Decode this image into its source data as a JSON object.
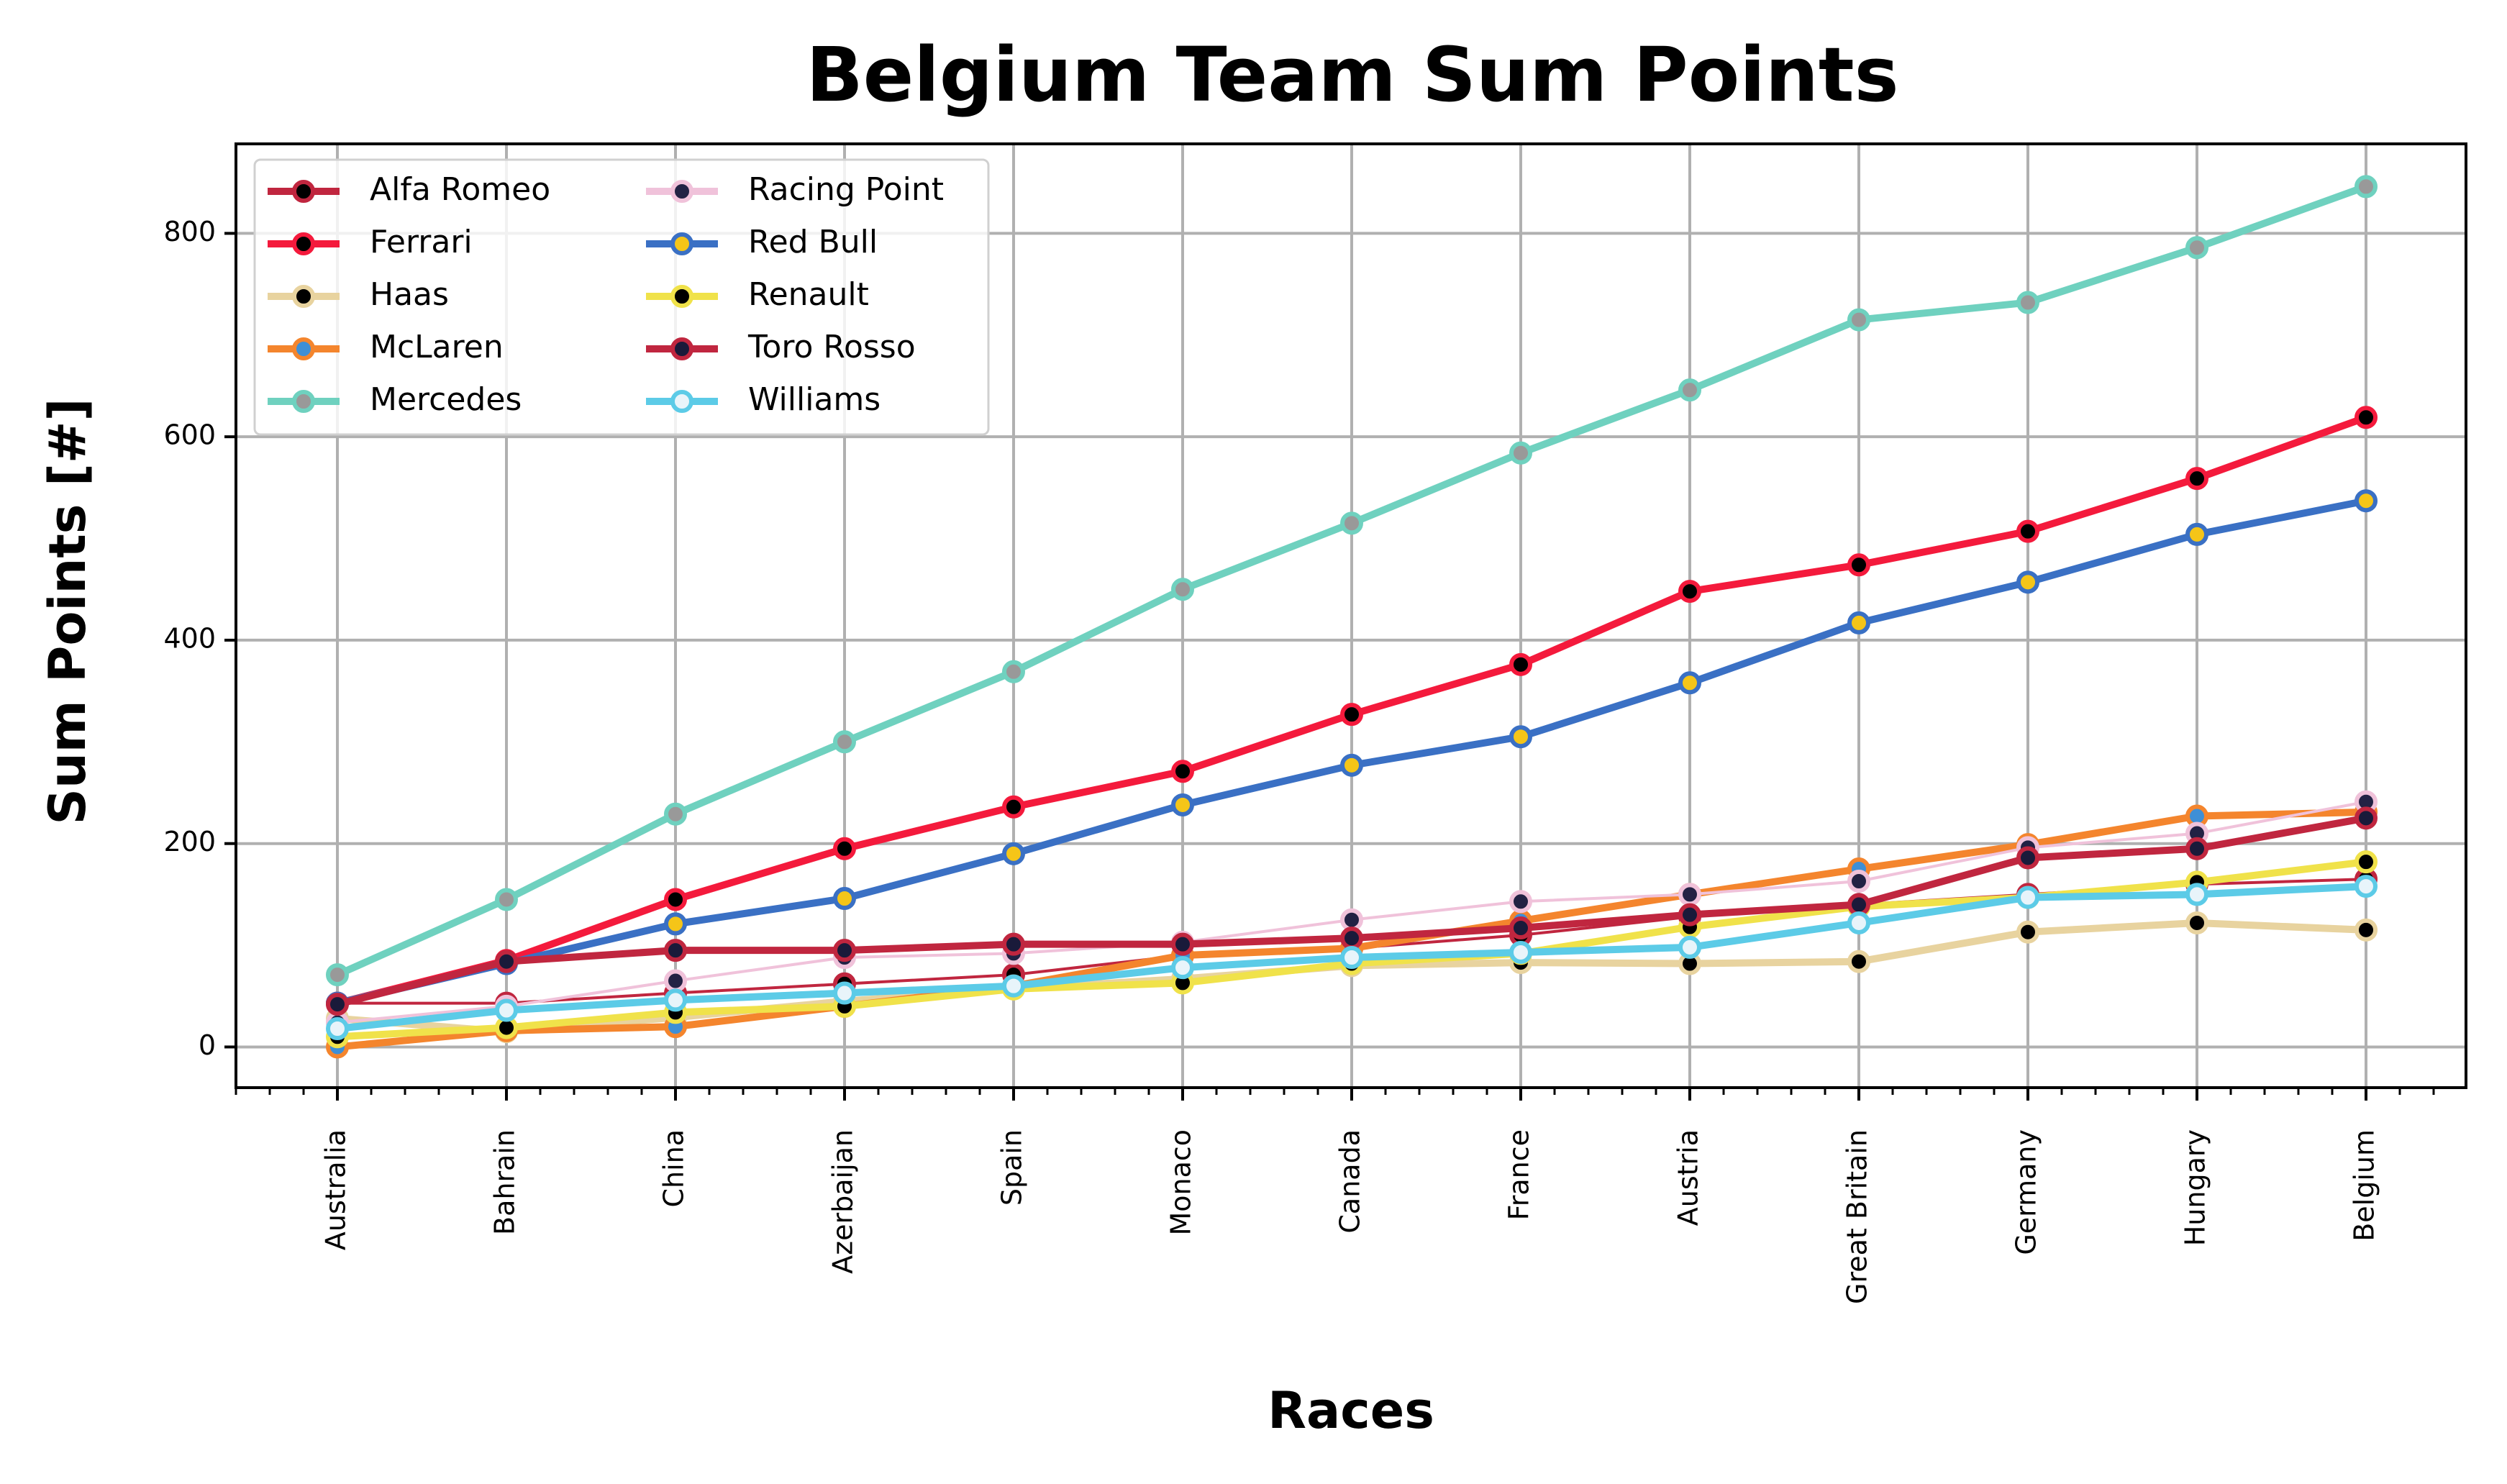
{
  "chart_data": {
    "type": "line",
    "title": "Belgium Team Sum Points",
    "xlabel": "Races",
    "ylabel": "Sum Points [#]",
    "categories": [
      "Australia",
      "Bahrain",
      "China",
      "Azerbaijan",
      "Spain",
      "Monaco",
      "Canada",
      "France",
      "Austria",
      "Great Britain",
      "Germany",
      "Hungary",
      "Belgium"
    ],
    "ylim": [
      -40,
      888
    ],
    "yticks": [
      0,
      200,
      400,
      600,
      800
    ],
    "grid": true,
    "legend_position": "top-left",
    "series": [
      {
        "name": "Alfa Romeo",
        "color": "#c0263f",
        "marker_color": "#000000",
        "values": [
          43,
          43,
          53,
          62,
          71,
          90,
          97,
          110,
          128,
          140,
          150,
          160,
          165
        ]
      },
      {
        "name": "Ferrari",
        "color": "#f41a3c",
        "marker_color": "#000000",
        "values": [
          43,
          85,
          145,
          195,
          236,
          271,
          327,
          376,
          448,
          474,
          507,
          559,
          619
        ]
      },
      {
        "name": "Haas",
        "color": "#e8d39f",
        "marker_color": "#000000",
        "values": [
          28,
          15,
          29,
          45,
          57,
          67,
          80,
          83,
          82,
          84,
          113,
          122,
          115
        ]
      },
      {
        "name": "McLaren",
        "color": "#f4852d",
        "marker_color": "#3e8fd6",
        "values": [
          0,
          16,
          20,
          40,
          60,
          90,
          97,
          124,
          150,
          175,
          199,
          227,
          231
        ]
      },
      {
        "name": "Mercedes",
        "color": "#6fd1bf",
        "marker_color": "#999999",
        "values": [
          71,
          145,
          229,
          300,
          369,
          450,
          515,
          584,
          646,
          715,
          732,
          786,
          846
        ]
      },
      {
        "name": "Racing Point",
        "color": "#f0c2da",
        "marker_color": "#222244",
        "values": [
          24,
          40,
          65,
          88,
          92,
          103,
          125,
          143,
          150,
          163,
          196,
          210,
          241
        ]
      },
      {
        "name": "Red Bull",
        "color": "#3a70c4",
        "marker_color": "#f5c518",
        "values": [
          43,
          82,
          121,
          146,
          190,
          238,
          277,
          305,
          358,
          417,
          457,
          504,
          537
        ]
      },
      {
        "name": "Renault",
        "color": "#f0e24a",
        "marker_color": "#000000",
        "values": [
          10,
          19,
          34,
          40,
          57,
          63,
          82,
          92,
          118,
          138,
          147,
          162,
          182
        ]
      },
      {
        "name": "Toro Rosso",
        "color": "#c0263f",
        "marker_color": "#1a1a3a",
        "values": [
          42,
          84,
          95,
          95,
          101,
          101,
          107,
          117,
          130,
          140,
          186,
          195,
          225
        ]
      },
      {
        "name": "Williams",
        "color": "#5ccbe7",
        "marker_color": "#e8f4fa",
        "values": [
          18,
          36,
          46,
          53,
          60,
          78,
          88,
          93,
          98,
          122,
          147,
          150,
          158
        ]
      }
    ]
  }
}
